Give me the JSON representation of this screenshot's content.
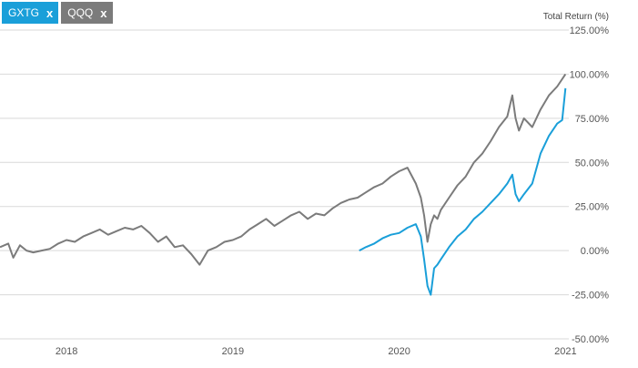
{
  "chips": [
    {
      "label": "GXTG",
      "close": "x",
      "color": "#1a9fd9"
    },
    {
      "label": "QQQ",
      "close": "x",
      "color": "#7b7b7b"
    }
  ],
  "chart_data": {
    "type": "line",
    "ylabel": "Total Return (%)",
    "ylim": [
      -50,
      125
    ],
    "y_ticks": [
      "125.00%",
      "100.00%",
      "75.00%",
      "50.00%",
      "25.00%",
      "0.00%",
      "-25.00%",
      "-50.00%"
    ],
    "y_tick_values": [
      125,
      100,
      75,
      50,
      25,
      0,
      -25,
      -50
    ],
    "x_tick_labels": [
      "2018",
      "2019",
      "2020",
      "2021"
    ],
    "x_tick_values": [
      2018.0,
      2019.0,
      2020.0,
      2021.0
    ],
    "xlim": [
      2017.6,
      2021.02
    ],
    "grid": true,
    "series": [
      {
        "name": "QQQ",
        "color": "#7b7b7b",
        "x": [
          2017.6,
          2017.65,
          2017.68,
          2017.72,
          2017.76,
          2017.8,
          2017.85,
          2017.9,
          2017.95,
          2018.0,
          2018.05,
          2018.1,
          2018.15,
          2018.2,
          2018.25,
          2018.3,
          2018.35,
          2018.4,
          2018.45,
          2018.5,
          2018.55,
          2018.6,
          2018.65,
          2018.7,
          2018.75,
          2018.8,
          2018.85,
          2018.9,
          2018.95,
          2019.0,
          2019.05,
          2019.1,
          2019.15,
          2019.2,
          2019.25,
          2019.3,
          2019.35,
          2019.4,
          2019.45,
          2019.5,
          2019.55,
          2019.6,
          2019.65,
          2019.7,
          2019.75,
          2019.8,
          2019.85,
          2019.9,
          2019.95,
          2020.0,
          2020.05,
          2020.1,
          2020.13,
          2020.15,
          2020.17,
          2020.19,
          2020.21,
          2020.23,
          2020.25,
          2020.3,
          2020.35,
          2020.4,
          2020.45,
          2020.5,
          2020.55,
          2020.6,
          2020.65,
          2020.68,
          2020.7,
          2020.72,
          2020.75,
          2020.8,
          2020.85,
          2020.9,
          2020.95,
          2021.0
        ],
        "values": [
          2,
          4,
          -4,
          3,
          0,
          -1,
          0,
          1,
          4,
          6,
          5,
          8,
          10,
          12,
          9,
          11,
          13,
          12,
          14,
          10,
          5,
          8,
          2,
          3,
          -2,
          -8,
          0,
          2,
          5,
          6,
          8,
          12,
          15,
          18,
          14,
          17,
          20,
          22,
          18,
          21,
          20,
          24,
          27,
          29,
          30,
          33,
          36,
          38,
          42,
          45,
          47,
          38,
          30,
          20,
          5,
          15,
          20,
          18,
          23,
          30,
          37,
          42,
          50,
          55,
          62,
          70,
          76,
          88,
          75,
          68,
          75,
          70,
          80,
          88,
          93,
          100
        ]
      },
      {
        "name": "GXTG",
        "color": "#1a9fd9",
        "x": [
          2019.76,
          2019.8,
          2019.85,
          2019.9,
          2019.95,
          2020.0,
          2020.05,
          2020.1,
          2020.13,
          2020.15,
          2020.17,
          2020.19,
          2020.21,
          2020.23,
          2020.25,
          2020.3,
          2020.35,
          2020.4,
          2020.45,
          2020.5,
          2020.55,
          2020.6,
          2020.65,
          2020.68,
          2020.7,
          2020.72,
          2020.75,
          2020.8,
          2020.85,
          2020.9,
          2020.95,
          2020.98,
          2021.0
        ],
        "values": [
          0,
          2,
          4,
          7,
          9,
          10,
          13,
          15,
          8,
          -5,
          -20,
          -25,
          -10,
          -8,
          -5,
          2,
          8,
          12,
          18,
          22,
          27,
          32,
          38,
          43,
          32,
          28,
          32,
          38,
          55,
          65,
          72,
          74,
          92
        ]
      }
    ]
  }
}
